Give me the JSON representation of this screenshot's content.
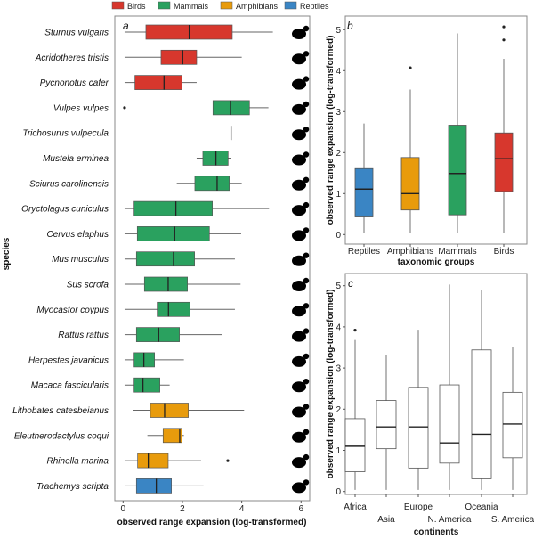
{
  "colors": {
    "Birds": "#d7372d",
    "Mammals": "#2aa15f",
    "Amphibians": "#e89b0c",
    "Reptiles": "#3a85c4"
  },
  "legend": [
    "Birds",
    "Mammals",
    "Amphibians",
    "Reptiles"
  ],
  "chart_data": [
    {
      "panel": "a",
      "type": "boxplot",
      "orientation": "horizontal",
      "xlabel": "observed range expansion (log-transformed)",
      "ylabel": "species",
      "xlim": [
        0,
        6
      ],
      "xticks": [
        "0",
        "2",
        "4",
        "6"
      ],
      "series": [
        {
          "species": "Sturnus vulgaris",
          "group": "Birds",
          "icon": "starling-silhouette-icon",
          "min": 0.05,
          "q1": 0.77,
          "median": 2.23,
          "q3": 3.68,
          "max": 5.05,
          "outliers": []
        },
        {
          "species": "Acridotheres tristis",
          "group": "Birds",
          "icon": "myna-silhouette-icon",
          "min": 0.05,
          "q1": 1.28,
          "median": 2.01,
          "q3": 2.48,
          "max": 4.0,
          "outliers": []
        },
        {
          "species": "Pycnonotus cafer",
          "group": "Birds",
          "icon": "bulbul-silhouette-icon",
          "min": 0.05,
          "q1": 0.4,
          "median": 1.38,
          "q3": 1.98,
          "max": 2.48,
          "outliers": []
        },
        {
          "species": "Vulpes vulpes",
          "group": "Mammals",
          "icon": "fox-silhouette-icon",
          "min": 3.03,
          "q1": 3.03,
          "median": 3.62,
          "q3": 4.26,
          "max": 4.9,
          "outliers": [
            0.05
          ]
        },
        {
          "species": "Trichosurus vulpecula",
          "group": "Mammals",
          "icon": "possum-silhouette-icon",
          "min": 3.64,
          "q1": 3.64,
          "median": 3.64,
          "q3": 3.64,
          "max": 3.64,
          "outliers": []
        },
        {
          "species": "Mustela erminea",
          "group": "Mammals",
          "icon": "stoat-silhouette-icon",
          "min": 2.48,
          "q1": 2.69,
          "median": 3.13,
          "q3": 3.54,
          "max": 3.65,
          "outliers": []
        },
        {
          "species": "Sciurus carolinensis",
          "group": "Mammals",
          "icon": "squirrel-silhouette-icon",
          "min": 1.81,
          "q1": 2.42,
          "median": 3.17,
          "q3": 3.58,
          "max": 4.0,
          "outliers": []
        },
        {
          "species": "Oryctolagus cuniculus",
          "group": "Mammals",
          "icon": "rabbit-silhouette-icon",
          "min": 0.05,
          "q1": 0.37,
          "median": 1.78,
          "q3": 3.01,
          "max": 4.92,
          "outliers": []
        },
        {
          "species": "Cervus elaphus",
          "group": "Mammals",
          "icon": "deer-silhouette-icon",
          "min": 0.05,
          "q1": 0.48,
          "median": 1.74,
          "q3": 2.91,
          "max": 3.98,
          "outliers": []
        },
        {
          "species": "Mus musculus",
          "group": "Mammals",
          "icon": "mouse-silhouette-icon",
          "min": 0.05,
          "q1": 0.45,
          "median": 1.7,
          "q3": 2.41,
          "max": 3.77,
          "outliers": []
        },
        {
          "species": "Sus scrofa",
          "group": "Mammals",
          "icon": "boar-silhouette-icon",
          "min": 0.05,
          "q1": 0.72,
          "median": 1.52,
          "q3": 2.17,
          "max": 3.96,
          "outliers": []
        },
        {
          "species": "Myocastor coypus",
          "group": "Mammals",
          "icon": "coypu-silhouette-icon",
          "min": 0.05,
          "q1": 1.15,
          "median": 1.53,
          "q3": 2.25,
          "max": 3.77,
          "outliers": []
        },
        {
          "species": "Rattus rattus",
          "group": "Mammals",
          "icon": "rat-silhouette-icon",
          "min": 0.05,
          "q1": 0.45,
          "median": 1.2,
          "q3": 1.9,
          "max": 3.35,
          "outliers": []
        },
        {
          "species": "Herpestes javanicus",
          "group": "Mammals",
          "icon": "mongoose-silhouette-icon",
          "min": 0.05,
          "q1": 0.37,
          "median": 0.7,
          "q3": 1.06,
          "max": 2.05,
          "outliers": []
        },
        {
          "species": "Macaca fascicularis",
          "group": "Mammals",
          "icon": "macaque-silhouette-icon",
          "min": 0.05,
          "q1": 0.37,
          "median": 0.67,
          "q3": 1.24,
          "max": 1.57,
          "outliers": []
        },
        {
          "species": "Lithobates catesbeianus",
          "group": "Amphibians",
          "icon": "bullfrog-silhouette-icon",
          "min": 0.33,
          "q1": 0.92,
          "median": 1.4,
          "q3": 2.2,
          "max": 4.08,
          "outliers": []
        },
        {
          "species": "Eleutherodactylus coqui",
          "group": "Amphibians",
          "icon": "coqui-silhouette-icon",
          "min": 0.82,
          "q1": 1.35,
          "median": 1.91,
          "q3": 1.99,
          "max": 2.05,
          "outliers": []
        },
        {
          "species": "Rhinella marina",
          "group": "Amphibians",
          "icon": "toad-silhouette-icon",
          "min": 0.05,
          "q1": 0.49,
          "median": 0.85,
          "q3": 1.52,
          "max": 2.63,
          "outliers": [
            3.53
          ]
        },
        {
          "species": "Trachemys scripta",
          "group": "Reptiles",
          "icon": "turtle-silhouette-icon",
          "min": 0.05,
          "q1": 0.45,
          "median": 1.12,
          "q3": 1.63,
          "max": 2.71,
          "outliers": []
        }
      ]
    },
    {
      "panel": "b",
      "type": "boxplot",
      "xlabel": "taxonomic groups",
      "ylabel": "observed range expansion (log-transformed)",
      "ylim": [
        0,
        5
      ],
      "yticks": [
        "0",
        "1",
        "2",
        "3",
        "4",
        "5"
      ],
      "series": [
        {
          "category": "Reptiles",
          "min": 0.04,
          "q1": 0.43,
          "median": 1.11,
          "q3": 1.61,
          "max": 2.71,
          "outliers": []
        },
        {
          "category": "Amphibians",
          "min": 0.04,
          "q1": 0.6,
          "median": 1.0,
          "q3": 1.88,
          "max": 3.54,
          "outliers": [
            4.07
          ]
        },
        {
          "category": "Mammals",
          "min": 0.04,
          "q1": 0.48,
          "median": 1.49,
          "q3": 2.67,
          "max": 4.91,
          "outliers": []
        },
        {
          "category": "Birds",
          "min": 0.04,
          "q1": 1.05,
          "median": 1.85,
          "q3": 2.48,
          "max": 4.29,
          "outliers": [
            4.75,
            5.07
          ]
        }
      ]
    },
    {
      "panel": "c",
      "type": "boxplot",
      "xlabel": "continents",
      "ylabel": "observed range expansion (log-transformed)",
      "ylim": [
        0,
        5
      ],
      "yticks": [
        "0",
        "1",
        "2",
        "3",
        "4",
        "5"
      ],
      "series": [
        {
          "category": "Africa",
          "min": 0.04,
          "q1": 0.48,
          "median": 1.1,
          "q3": 1.77,
          "max": 3.68,
          "outliers": [
            3.92
          ]
        },
        {
          "category": "Asia",
          "min": 0.04,
          "q1": 1.04,
          "median": 1.57,
          "q3": 2.21,
          "max": 3.32,
          "outliers": []
        },
        {
          "category": "Europe",
          "min": 0.04,
          "q1": 0.57,
          "median": 1.57,
          "q3": 2.53,
          "max": 3.93,
          "outliers": []
        },
        {
          "category": "N. America",
          "min": 0.04,
          "q1": 0.69,
          "median": 1.18,
          "q3": 2.59,
          "max": 5.03,
          "outliers": []
        },
        {
          "category": "Oceania",
          "min": 0.04,
          "q1": 0.31,
          "median": 1.39,
          "q3": 3.44,
          "max": 4.89,
          "outliers": []
        },
        {
          "category": "S. America",
          "min": 0.04,
          "q1": 0.82,
          "median": 1.64,
          "q3": 2.41,
          "max": 3.52,
          "outliers": []
        }
      ]
    }
  ]
}
